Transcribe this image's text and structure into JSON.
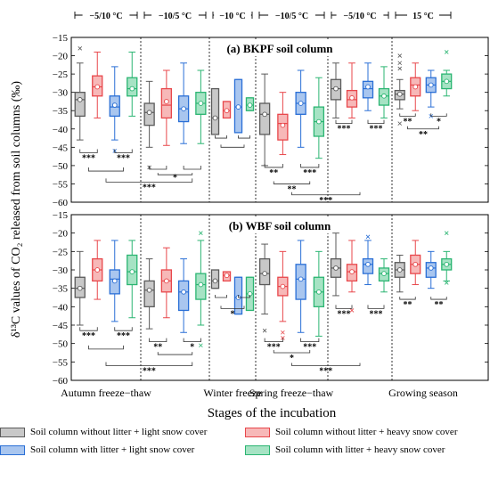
{
  "chart_data": [
    {
      "type": "box",
      "title": "(a) BKPF soil column",
      "ylim": [
        -60,
        -15
      ],
      "yticks": [
        -60,
        -55,
        -50,
        -45,
        -40,
        -35,
        -30,
        -25,
        -20,
        -15
      ],
      "groups": [
        {
          "temp": "−5/10 °C",
          "boxes": [
            {
              "series": 0,
              "q1": -36.5,
              "q3": -30,
              "median": -32,
              "mean": -32,
              "wl": -43,
              "wh": -22,
              "out": [
                -18
              ]
            },
            {
              "series": 1,
              "q1": -31,
              "q3": -25.5,
              "median": -28.5,
              "mean": -28.5,
              "wl": -37,
              "wh": -19,
              "out": []
            },
            {
              "series": 2,
              "q1": -36.5,
              "q3": -31,
              "median": -34,
              "mean": -33.5,
              "wl": -43,
              "wh": -23,
              "out": [
                -46
              ]
            },
            {
              "series": 3,
              "q1": -31,
              "q3": -26,
              "median": -29,
              "mean": -29,
              "wl": -36.5,
              "wh": -19,
              "out": []
            }
          ]
        },
        {
          "temp": "−10/5 °C",
          "boxes": [
            {
              "series": 0,
              "q1": -39,
              "q3": -33,
              "median": -35.5,
              "mean": -35.5,
              "wl": -45,
              "wh": -27,
              "out": [
                -50.5
              ]
            },
            {
              "series": 1,
              "q1": -37,
              "q3": -29,
              "median": -33.5,
              "mean": -32.5,
              "wl": -44.5,
              "wh": -24,
              "out": []
            },
            {
              "series": 2,
              "q1": -38,
              "q3": -31,
              "median": -34.5,
              "mean": -34.5,
              "wl": -44,
              "wh": -22,
              "out": []
            },
            {
              "series": 3,
              "q1": -36,
              "q3": -30,
              "median": -33,
              "mean": -33,
              "wl": -44,
              "wh": -24,
              "out": []
            }
          ]
        },
        {
          "temp": "−10 °C",
          "boxes": [
            {
              "series": 0,
              "q1": -41.5,
              "q3": -29,
              "median": -37,
              "mean": -37,
              "wl": -41.5,
              "wh": -29,
              "out": []
            },
            {
              "series": 1,
              "q1": -37,
              "q3": -32.5,
              "median": -35,
              "mean": -35,
              "wl": -37,
              "wh": -32.5,
              "out": []
            },
            {
              "series": 2,
              "q1": -41,
              "q3": -26.5,
              "median": -34,
              "mean": -34,
              "wl": -41,
              "wh": -26.5,
              "out": []
            },
            {
              "series": 3,
              "q1": -35,
              "q3": -31.5,
              "median": -33.5,
              "mean": -33.5,
              "wl": -35,
              "wh": -31.5,
              "out": []
            }
          ]
        },
        {
          "temp": "−10/5 °C",
          "boxes": [
            {
              "series": 0,
              "q1": -41.5,
              "q3": -33,
              "median": -36,
              "mean": -36,
              "wl": -50,
              "wh": -25,
              "out": []
            },
            {
              "series": 1,
              "q1": -43,
              "q3": -36,
              "median": -38.5,
              "mean": -39,
              "wl": -47,
              "wh": -30,
              "out": []
            },
            {
              "series": 2,
              "q1": -36,
              "q3": -30,
              "median": -33,
              "mean": -33,
              "wl": -45,
              "wh": -24,
              "out": []
            },
            {
              "series": 3,
              "q1": -42,
              "q3": -34,
              "median": -38,
              "mean": -38,
              "wl": -48,
              "wh": -26,
              "out": []
            }
          ]
        },
        {
          "temp": "−5/10 °C",
          "boxes": [
            {
              "series": 0,
              "q1": -32,
              "q3": -26.5,
              "median": -29,
              "mean": -29,
              "wl": -37,
              "wh": -22,
              "out": []
            },
            {
              "series": 1,
              "q1": -34,
              "q3": -29.5,
              "median": -32,
              "mean": -31.5,
              "wl": -37,
              "wh": -22,
              "out": []
            },
            {
              "series": 2,
              "q1": -31.5,
              "q3": -27,
              "median": -29,
              "mean": -28.5,
              "wl": -35,
              "wh": -22,
              "out": []
            },
            {
              "series": 3,
              "q1": -33.5,
              "q3": -29,
              "median": -31,
              "mean": -31,
              "wl": -37,
              "wh": -23,
              "out": []
            }
          ]
        },
        {
          "temp": "15 °C",
          "boxes": [
            {
              "series": 0,
              "q1": -32,
              "q3": -29.5,
              "median": -30.5,
              "mean": -30.5,
              "wl": -34.5,
              "wh": -26.5,
              "out": [
                -20,
                -22,
                -23.5,
                -38.5
              ]
            },
            {
              "series": 1,
              "q1": -31,
              "q3": -26,
              "median": -28,
              "mean": -28.5,
              "wl": -35,
              "wh": -22,
              "out": []
            },
            {
              "series": 2,
              "q1": -30,
              "q3": -26,
              "median": -28,
              "mean": -28,
              "wl": -34,
              "wh": -24,
              "out": [
                -36.5
              ]
            },
            {
              "series": 3,
              "q1": -29,
              "q3": -25,
              "median": -27,
              "mean": -27,
              "wl": -31,
              "wh": -24,
              "out": [
                -19
              ]
            }
          ]
        }
      ],
      "annotations": [
        "***",
        "***",
        "***",
        "*",
        "***",
        "**",
        "***",
        "**",
        "***",
        "***",
        "***",
        "**",
        "*",
        "**"
      ]
    },
    {
      "type": "box",
      "title": "(b) WBF soil column",
      "ylim": [
        -60,
        -15
      ],
      "yticks": [
        -60,
        -55,
        -50,
        -45,
        -40,
        -35,
        -30,
        -25,
        -20,
        -15
      ],
      "groups": [
        {
          "temp": "−5/10 °C",
          "boxes": [
            {
              "series": 0,
              "q1": -37.5,
              "q3": -32,
              "median": -35,
              "mean": -35,
              "wl": -45,
              "wh": -25,
              "out": []
            },
            {
              "series": 1,
              "q1": -33,
              "q3": -27,
              "median": -30,
              "mean": -30,
              "wl": -38,
              "wh": -22,
              "out": []
            },
            {
              "series": 2,
              "q1": -36.5,
              "q3": -30,
              "median": -32.5,
              "mean": -33,
              "wl": -44,
              "wh": -22,
              "out": []
            },
            {
              "series": 3,
              "q1": -34,
              "q3": -26,
              "median": -30.5,
              "mean": -30.5,
              "wl": -43,
              "wh": -22,
              "out": []
            }
          ]
        },
        {
          "temp": "−10/5 °C",
          "boxes": [
            {
              "series": 0,
              "q1": -40,
              "q3": -33,
              "median": -35.5,
              "mean": -35.5,
              "wl": -46,
              "wh": -27,
              "out": []
            },
            {
              "series": 1,
              "q1": -36,
              "q3": -30,
              "median": -33,
              "mean": -33,
              "wl": -43,
              "wh": -24,
              "out": []
            },
            {
              "series": 2,
              "q1": -41,
              "q3": -33,
              "median": -36,
              "mean": -36,
              "wl": -47,
              "wh": -27,
              "out": []
            },
            {
              "series": 3,
              "q1": -38,
              "q3": -31,
              "median": -34,
              "mean": -34,
              "wl": -45,
              "wh": -22,
              "out": [
                -20,
                -50.5
              ]
            }
          ]
        },
        {
          "temp": "−10 °C",
          "boxes": [
            {
              "series": 0,
              "q1": -35,
              "q3": -30,
              "median": -33,
              "mean": -33,
              "wl": -35,
              "wh": -30,
              "out": []
            },
            {
              "series": 1,
              "q1": -33,
              "q3": -30.5,
              "median": -31.5,
              "mean": -31.5,
              "wl": -33,
              "wh": -30.5,
              "out": []
            },
            {
              "series": 2,
              "q1": -42,
              "q3": -32,
              "median": -37.5,
              "mean": -37.5,
              "wl": -42,
              "wh": -32,
              "out": []
            },
            {
              "series": 3,
              "q1": -41,
              "q3": -32,
              "median": -36.5,
              "mean": -36.5,
              "wl": -41,
              "wh": -32,
              "out": []
            }
          ]
        },
        {
          "temp": "−10/5 °C",
          "boxes": [
            {
              "series": 0,
              "q1": -34,
              "q3": -27,
              "median": -31,
              "mean": -31,
              "wl": -42,
              "wh": -23,
              "out": [
                -46.5
              ]
            },
            {
              "series": 1,
              "q1": -37,
              "q3": -32,
              "median": -34.5,
              "mean": -34.5,
              "wl": -44,
              "wh": -25,
              "out": [
                -47,
                -48.5
              ]
            },
            {
              "series": 2,
              "q1": -38,
              "q3": -28.5,
              "median": -32.5,
              "mean": -32.5,
              "wl": -47,
              "wh": -22,
              "out": []
            },
            {
              "series": 3,
              "q1": -40,
              "q3": -32,
              "median": -36,
              "mean": -36,
              "wl": -48,
              "wh": -25,
              "out": []
            }
          ]
        },
        {
          "temp": "−5/10 °C",
          "boxes": [
            {
              "series": 0,
              "q1": -32,
              "q3": -27,
              "median": -29.5,
              "mean": -29.5,
              "wl": -37,
              "wh": -20,
              "out": []
            },
            {
              "series": 1,
              "q1": -33,
              "q3": -28.5,
              "median": -30.5,
              "mean": -30.5,
              "wl": -36,
              "wh": -22,
              "out": [
                -41
              ]
            },
            {
              "series": 2,
              "q1": -31,
              "q3": -27,
              "median": -28.5,
              "mean": -28.5,
              "wl": -34,
              "wh": -22,
              "out": [
                -21
              ]
            },
            {
              "series": 3,
              "q1": -33,
              "q3": -29.5,
              "median": -31,
              "mean": -31,
              "wl": -36,
              "wh": -27,
              "out": []
            }
          ]
        },
        {
          "temp": "15 °C",
          "boxes": [
            {
              "series": 0,
              "q1": -32,
              "q3": -28,
              "median": -30,
              "mean": -30,
              "wl": -36,
              "wh": -26,
              "out": []
            },
            {
              "series": 1,
              "q1": -31,
              "q3": -26,
              "median": -28.5,
              "mean": -28.5,
              "wl": -34,
              "wh": -22,
              "out": []
            },
            {
              "series": 2,
              "q1": -32,
              "q3": -28,
              "median": -29.5,
              "mean": -29.5,
              "wl": -35,
              "wh": -25,
              "out": []
            },
            {
              "series": 3,
              "q1": -30,
              "q3": -27,
              "median": -28.5,
              "mean": -28.5,
              "wl": -33,
              "wh": -25,
              "out": [
                -20,
                -33.5
              ]
            }
          ]
        }
      ],
      "annotations": [
        "***",
        "***",
        "***",
        "**",
        "*",
        "***",
        "*",
        "***",
        "***",
        "*",
        "***",
        "***",
        "***",
        "**",
        "**"
      ]
    }
  ],
  "temperature_labels": [
    "−5/10 °C",
    "−10/5 °C",
    "−10 °C",
    "−10/5 °C",
    "−5/10 °C",
    "15 °C"
  ],
  "stage_labels": [
    "Autumn freeze−thaw",
    "Winter freeze",
    "Spring freeze−thaw",
    "Growing season"
  ],
  "ylabel": "δ¹³C values of CO₂ released from soil columns (‰)",
  "xlabel": "Stages of the incubation",
  "legend": [
    {
      "label": "Soil column without litter + light snow cover",
      "color": "#5a5a5a",
      "fill": "#c8c8c8"
    },
    {
      "label": "Soil column without litter + heavy snow cover",
      "color": "#e8474b",
      "fill": "#f7b8b8"
    },
    {
      "label": "Soil column with litter + light snow cover",
      "color": "#2a6fd6",
      "fill": "#a9c6ef"
    },
    {
      "label": "Soil column with litter + heavy snow cover",
      "color": "#2bb572",
      "fill": "#a6e3c4"
    }
  ]
}
